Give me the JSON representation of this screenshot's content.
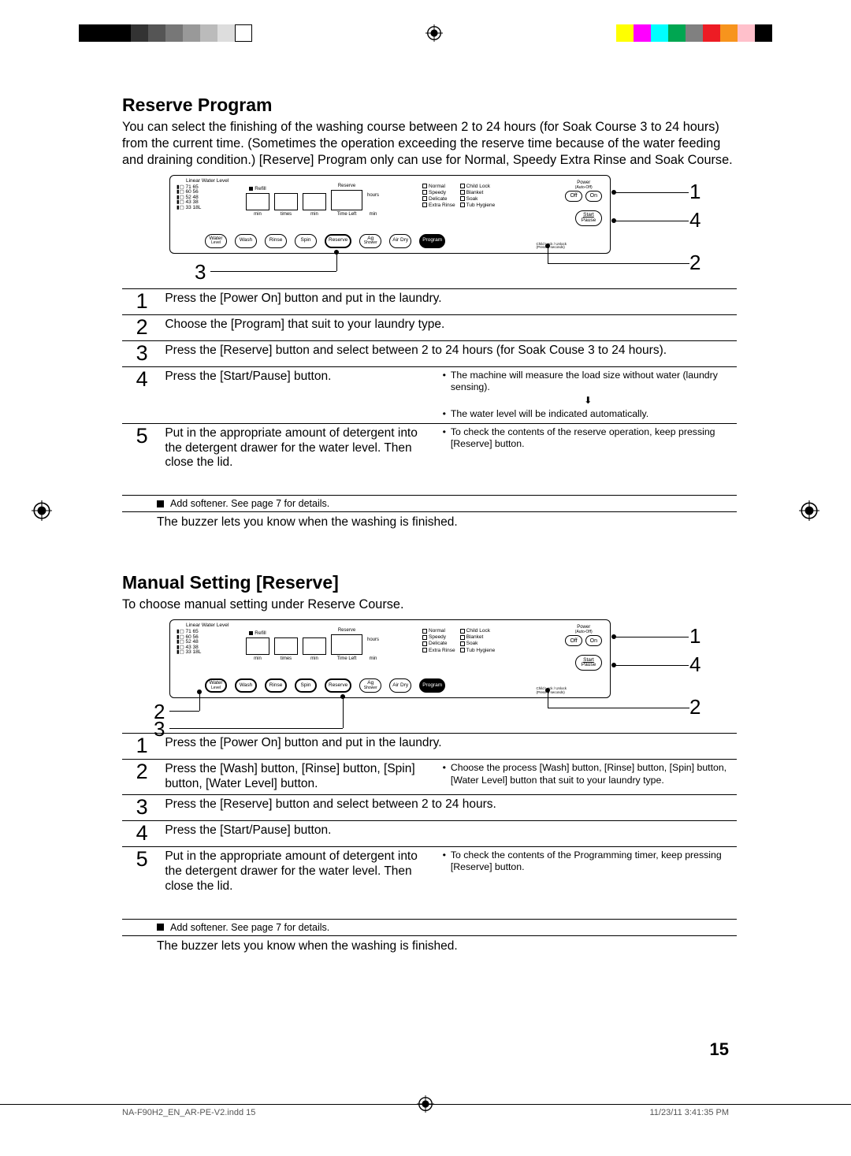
{
  "colorbar": {
    "left": [
      "#000000",
      "#000000",
      "#000000",
      "#333333",
      "#555555",
      "#777777",
      "#999999",
      "#bbbbbb",
      "#dddddd",
      "#ffffff"
    ],
    "right": [
      "#ffff00",
      "#ff00ff",
      "#00ffff",
      "#00a651",
      "#808080",
      "#ed1c24",
      "#f7941d",
      "#ffc0cb",
      "#000000"
    ]
  },
  "section1": {
    "title": "Reserve Program",
    "intro": "You can select the finishing of the washing course between 2 to 24 hours (for Soak Course 3 to 24 hours) from the current time. (Sometimes the operation exceeding the reserve time because of the water feeding and draining condition.) [Reserve] Program only can use for Normal, Speedy Extra Rinse and Soak Course.",
    "panel": {
      "linear_water_level_title": "Linear Water Level",
      "levels_left": [
        "71",
        "60",
        "52",
        "43",
        "33"
      ],
      "levels_right": [
        "65",
        "56",
        "48",
        "38",
        "18L"
      ],
      "readouts": {
        "refill": "Refill",
        "min1": "min",
        "times": "times",
        "min2": "min",
        "reserve": "Reserve",
        "hours": "hours",
        "timeleft": "Time Left",
        "min3": "min"
      },
      "program_col1": [
        "Normal",
        "Speedy",
        "Delicate",
        "Extra Rinse"
      ],
      "program_col2": [
        "Child Lock",
        "Blanket",
        "Soak",
        "Tub Hygiene"
      ],
      "power": {
        "label": "Power",
        "auto": "(Auto-Off)",
        "off": "Off",
        "on": "On"
      },
      "startpause": "Start\nPause",
      "buttons": [
        "Water\nLevel",
        "Wash",
        "Rinse",
        "Spin",
        "Reserve",
        "Ag\nShower",
        "Air Dry",
        "Program"
      ],
      "program_sub": "Child Lock / Unlock\n(Press 5 seconds)"
    },
    "callouts": {
      "c1": "1",
      "c2": "2",
      "c3": "3",
      "c4": "4"
    },
    "steps": [
      {
        "n": "1",
        "main": "Press the [Power On] button and put in the laundry."
      },
      {
        "n": "2",
        "main": "Choose the [Program] that suit to your laundry type."
      },
      {
        "n": "3",
        "main": "Press the [Reserve] button and select between 2 to 24 hours (for Soak Couse 3 to 24 hours)."
      },
      {
        "n": "4",
        "main": "Press the [Start/Pause] button.",
        "side": [
          "The machine will measure the load size without water (laundry sensing).",
          "__arrow__",
          "The water level will be indicated automatically."
        ]
      },
      {
        "n": "5",
        "main": "Put in the appropriate amount of detergent into the detergent drawer for the water level. Then close the lid.",
        "side": [
          "To check the contents of the reserve operation, keep pressing [Reserve] button."
        ]
      }
    ],
    "softener": "Add softener. See page 7 for details.",
    "buzzer": "The buzzer lets you know when the washing is finished."
  },
  "section2": {
    "title": "Manual Setting [Reserve]",
    "intro": "To choose manual setting under Reserve Course.",
    "callouts": {
      "c1": "1",
      "c2": "2",
      "c3": "3",
      "c4": "4"
    },
    "steps": [
      {
        "n": "1",
        "main": "Press the [Power On] button and put in the laundry."
      },
      {
        "n": "2",
        "main": "Press the [Wash] button, [Rinse] button, [Spin] button, [Water Level] button.",
        "side": [
          "Choose the process [Wash] button, [Rinse] button, [Spin] button, [Water Level] button that suit to your laundry type."
        ]
      },
      {
        "n": "3",
        "main": "Press the [Reserve] button and select between 2 to 24 hours."
      },
      {
        "n": "4",
        "main": "Press the [Start/Pause] button."
      },
      {
        "n": "5",
        "main": "Put in the appropriate amount of detergent into the detergent drawer for the water level. Then close the lid.",
        "side": [
          "To check the contents of the Programming timer, keep pressing [Reserve] button."
        ]
      }
    ],
    "softener": "Add softener. See page 7 for details.",
    "buzzer": "The buzzer lets you know when the washing is finished."
  },
  "page_number": "15",
  "footer": {
    "left": "NA-F90H2_EN_AR-PE-V2.indd   15",
    "right": "11/23/11   3:41:35 PM"
  }
}
